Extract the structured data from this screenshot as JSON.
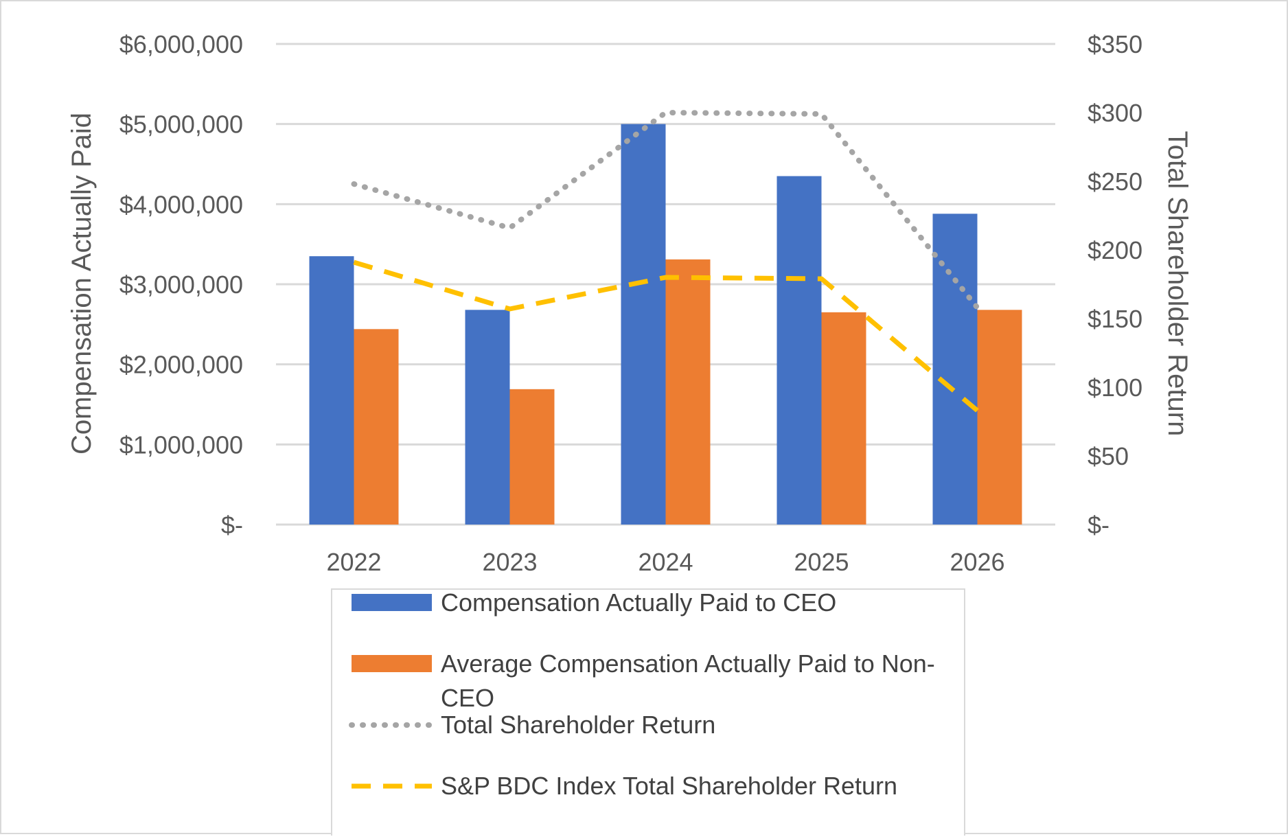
{
  "chart_data": {
    "type": "bar",
    "categories": [
      "2022",
      "2023",
      "2024",
      "2025",
      "2026"
    ],
    "ylabel": "Compensation Actually Paid",
    "y2label": "Total Shareholder Return",
    "ylim": [
      0,
      6000000
    ],
    "y2lim": [
      0,
      350
    ],
    "yticks": [
      {
        "value": 0,
        "label": "$-"
      },
      {
        "value": 1000000,
        "label": "$1,000,000"
      },
      {
        "value": 2000000,
        "label": "$2,000,000"
      },
      {
        "value": 3000000,
        "label": "$3,000,000"
      },
      {
        "value": 4000000,
        "label": "$4,000,000"
      },
      {
        "value": 5000000,
        "label": "$5,000,000"
      },
      {
        "value": 6000000,
        "label": "$6,000,000"
      }
    ],
    "y2ticks": [
      {
        "value": 0,
        "label": "$-"
      },
      {
        "value": 50,
        "label": "$50"
      },
      {
        "value": 100,
        "label": "$100"
      },
      {
        "value": 150,
        "label": "$150"
      },
      {
        "value": 200,
        "label": "$200"
      },
      {
        "value": 250,
        "label": "$250"
      },
      {
        "value": 300,
        "label": "$300"
      },
      {
        "value": 350,
        "label": "$350"
      }
    ],
    "grid": true,
    "legend": "bottom",
    "series": [
      {
        "name": "Compensation Actually Paid to CEO",
        "kind": "bar",
        "axis": "left",
        "color": "#4472C4",
        "values": [
          3350000,
          2680000,
          5000000,
          4350000,
          3880000
        ]
      },
      {
        "name": "Average Compensation Actually Paid to Non-CEO",
        "kind": "bar",
        "axis": "left",
        "color": "#ED7D31",
        "values": [
          2440000,
          1690000,
          3310000,
          2650000,
          2680000
        ]
      },
      {
        "name": "Total Shareholder Return",
        "kind": "line",
        "style": "dotted",
        "axis": "right",
        "color": "#A5A5A5",
        "values": [
          248,
          216,
          300,
          299,
          158
        ]
      },
      {
        "name": "S&P BDC Index Total Shareholder Return",
        "kind": "line",
        "style": "dashed",
        "axis": "right",
        "color": "#FFC000",
        "values": [
          191,
          157,
          180,
          179,
          83
        ]
      }
    ]
  }
}
